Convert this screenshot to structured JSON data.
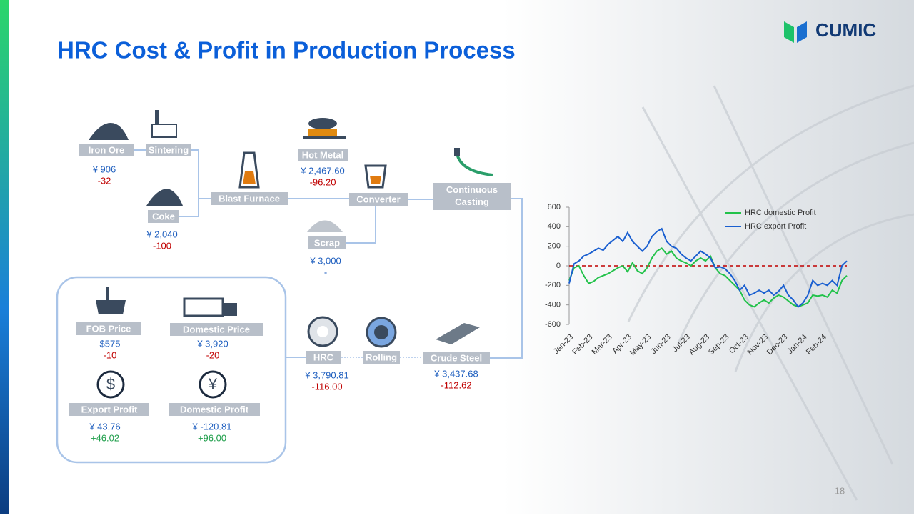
{
  "header": {
    "title": "HRC Cost & Profit in Production Process",
    "logo": "CUMIC",
    "page_number": "18"
  },
  "process": {
    "nodes": [
      {
        "label": "Iron Ore",
        "price": "¥ 906",
        "change": "-32",
        "change_color": "#c00000"
      },
      {
        "label": "Sintering"
      },
      {
        "label": "Coke",
        "price": "¥ 2,040",
        "change": "-100",
        "change_color": "#c00000"
      },
      {
        "label": "Blast Furnace"
      },
      {
        "label": "Hot Metal",
        "price": "¥ 2,467.60",
        "change": "-96.20",
        "change_color": "#c00000"
      },
      {
        "label": "Converter"
      },
      {
        "label": "Scrap",
        "price": "¥ 3,000",
        "change": "-",
        "change_color": "#1f5fbf"
      },
      {
        "label": "Continuous Casting"
      },
      {
        "label": "Crude Steel",
        "price": "¥ 3,437.68",
        "change": "-112.62",
        "change_color": "#c00000"
      },
      {
        "label": "Rolling"
      },
      {
        "label": "HRC",
        "price": "¥ 3,790.81",
        "change": "-116.00",
        "change_color": "#c00000"
      },
      {
        "label": "FOB Price",
        "price": "$575",
        "change": "-10",
        "change_color": "#c00000"
      },
      {
        "label": "Domestic Price",
        "price": "¥ 3,920",
        "change": "-20",
        "change_color": "#c00000"
      },
      {
        "label": "Export Profit",
        "price": "¥ 43.76",
        "change": "+46.02",
        "change_color": "#1e9e4a"
      },
      {
        "label": "Domestic Profit",
        "price": "¥ -120.81",
        "change": "+96.00",
        "change_color": "#1e9e4a"
      }
    ]
  },
  "chart_data": {
    "type": "line",
    "categories": [
      "Jan-23",
      null,
      null,
      null,
      "Feb-23",
      null,
      null,
      null,
      "Mar-23",
      null,
      null,
      null,
      "Apr-23",
      null,
      null,
      null,
      "May-23",
      null,
      null,
      null,
      "Jun-23",
      null,
      null,
      null,
      "Jul-23",
      null,
      null,
      null,
      "Aug-23",
      null,
      null,
      null,
      "Sep-23",
      null,
      null,
      null,
      "Oct-23",
      null,
      null,
      null,
      "Nov-23",
      null,
      null,
      null,
      "Dec-23",
      null,
      null,
      null,
      "Jan-24",
      null,
      null,
      null,
      "Feb-24",
      null,
      null,
      null,
      null,
      null
    ],
    "series": [
      {
        "name": "HRC domestic Profit",
        "color": "#22c24a",
        "values": [
          -150,
          -20,
          0,
          -100,
          -180,
          -160,
          -120,
          -100,
          -80,
          -50,
          -20,
          0,
          -60,
          30,
          -50,
          -80,
          -20,
          80,
          150,
          180,
          120,
          150,
          80,
          50,
          30,
          0,
          50,
          80,
          50,
          100,
          -20,
          -80,
          -100,
          -150,
          -200,
          -250,
          -350,
          -400,
          -420,
          -380,
          -350,
          -380,
          -330,
          -300,
          -320,
          -360,
          -400,
          -420,
          -400,
          -380,
          -300,
          -310,
          -300,
          -320,
          -250,
          -280,
          -150,
          -100
        ]
      },
      {
        "name": "HRC export Profit",
        "color": "#1a5fd0",
        "values": [
          -180,
          20,
          50,
          100,
          120,
          150,
          180,
          160,
          220,
          260,
          300,
          250,
          340,
          250,
          200,
          150,
          200,
          300,
          350,
          380,
          250,
          200,
          180,
          120,
          80,
          50,
          100,
          150,
          120,
          80,
          -20,
          -10,
          -30,
          -80,
          -150,
          -250,
          -200,
          -300,
          -280,
          -250,
          -280,
          -250,
          -300,
          -260,
          -200,
          -300,
          -350,
          -420,
          -380,
          -300,
          -150,
          -200,
          -180,
          -200,
          -150,
          -200,
          0,
          50
        ]
      }
    ],
    "ylim": [
      -600,
      600
    ],
    "yticks": [
      -600,
      -400,
      -200,
      0,
      200,
      400,
      600
    ],
    "reference_line": {
      "value": 0,
      "color": "#c00000"
    }
  }
}
